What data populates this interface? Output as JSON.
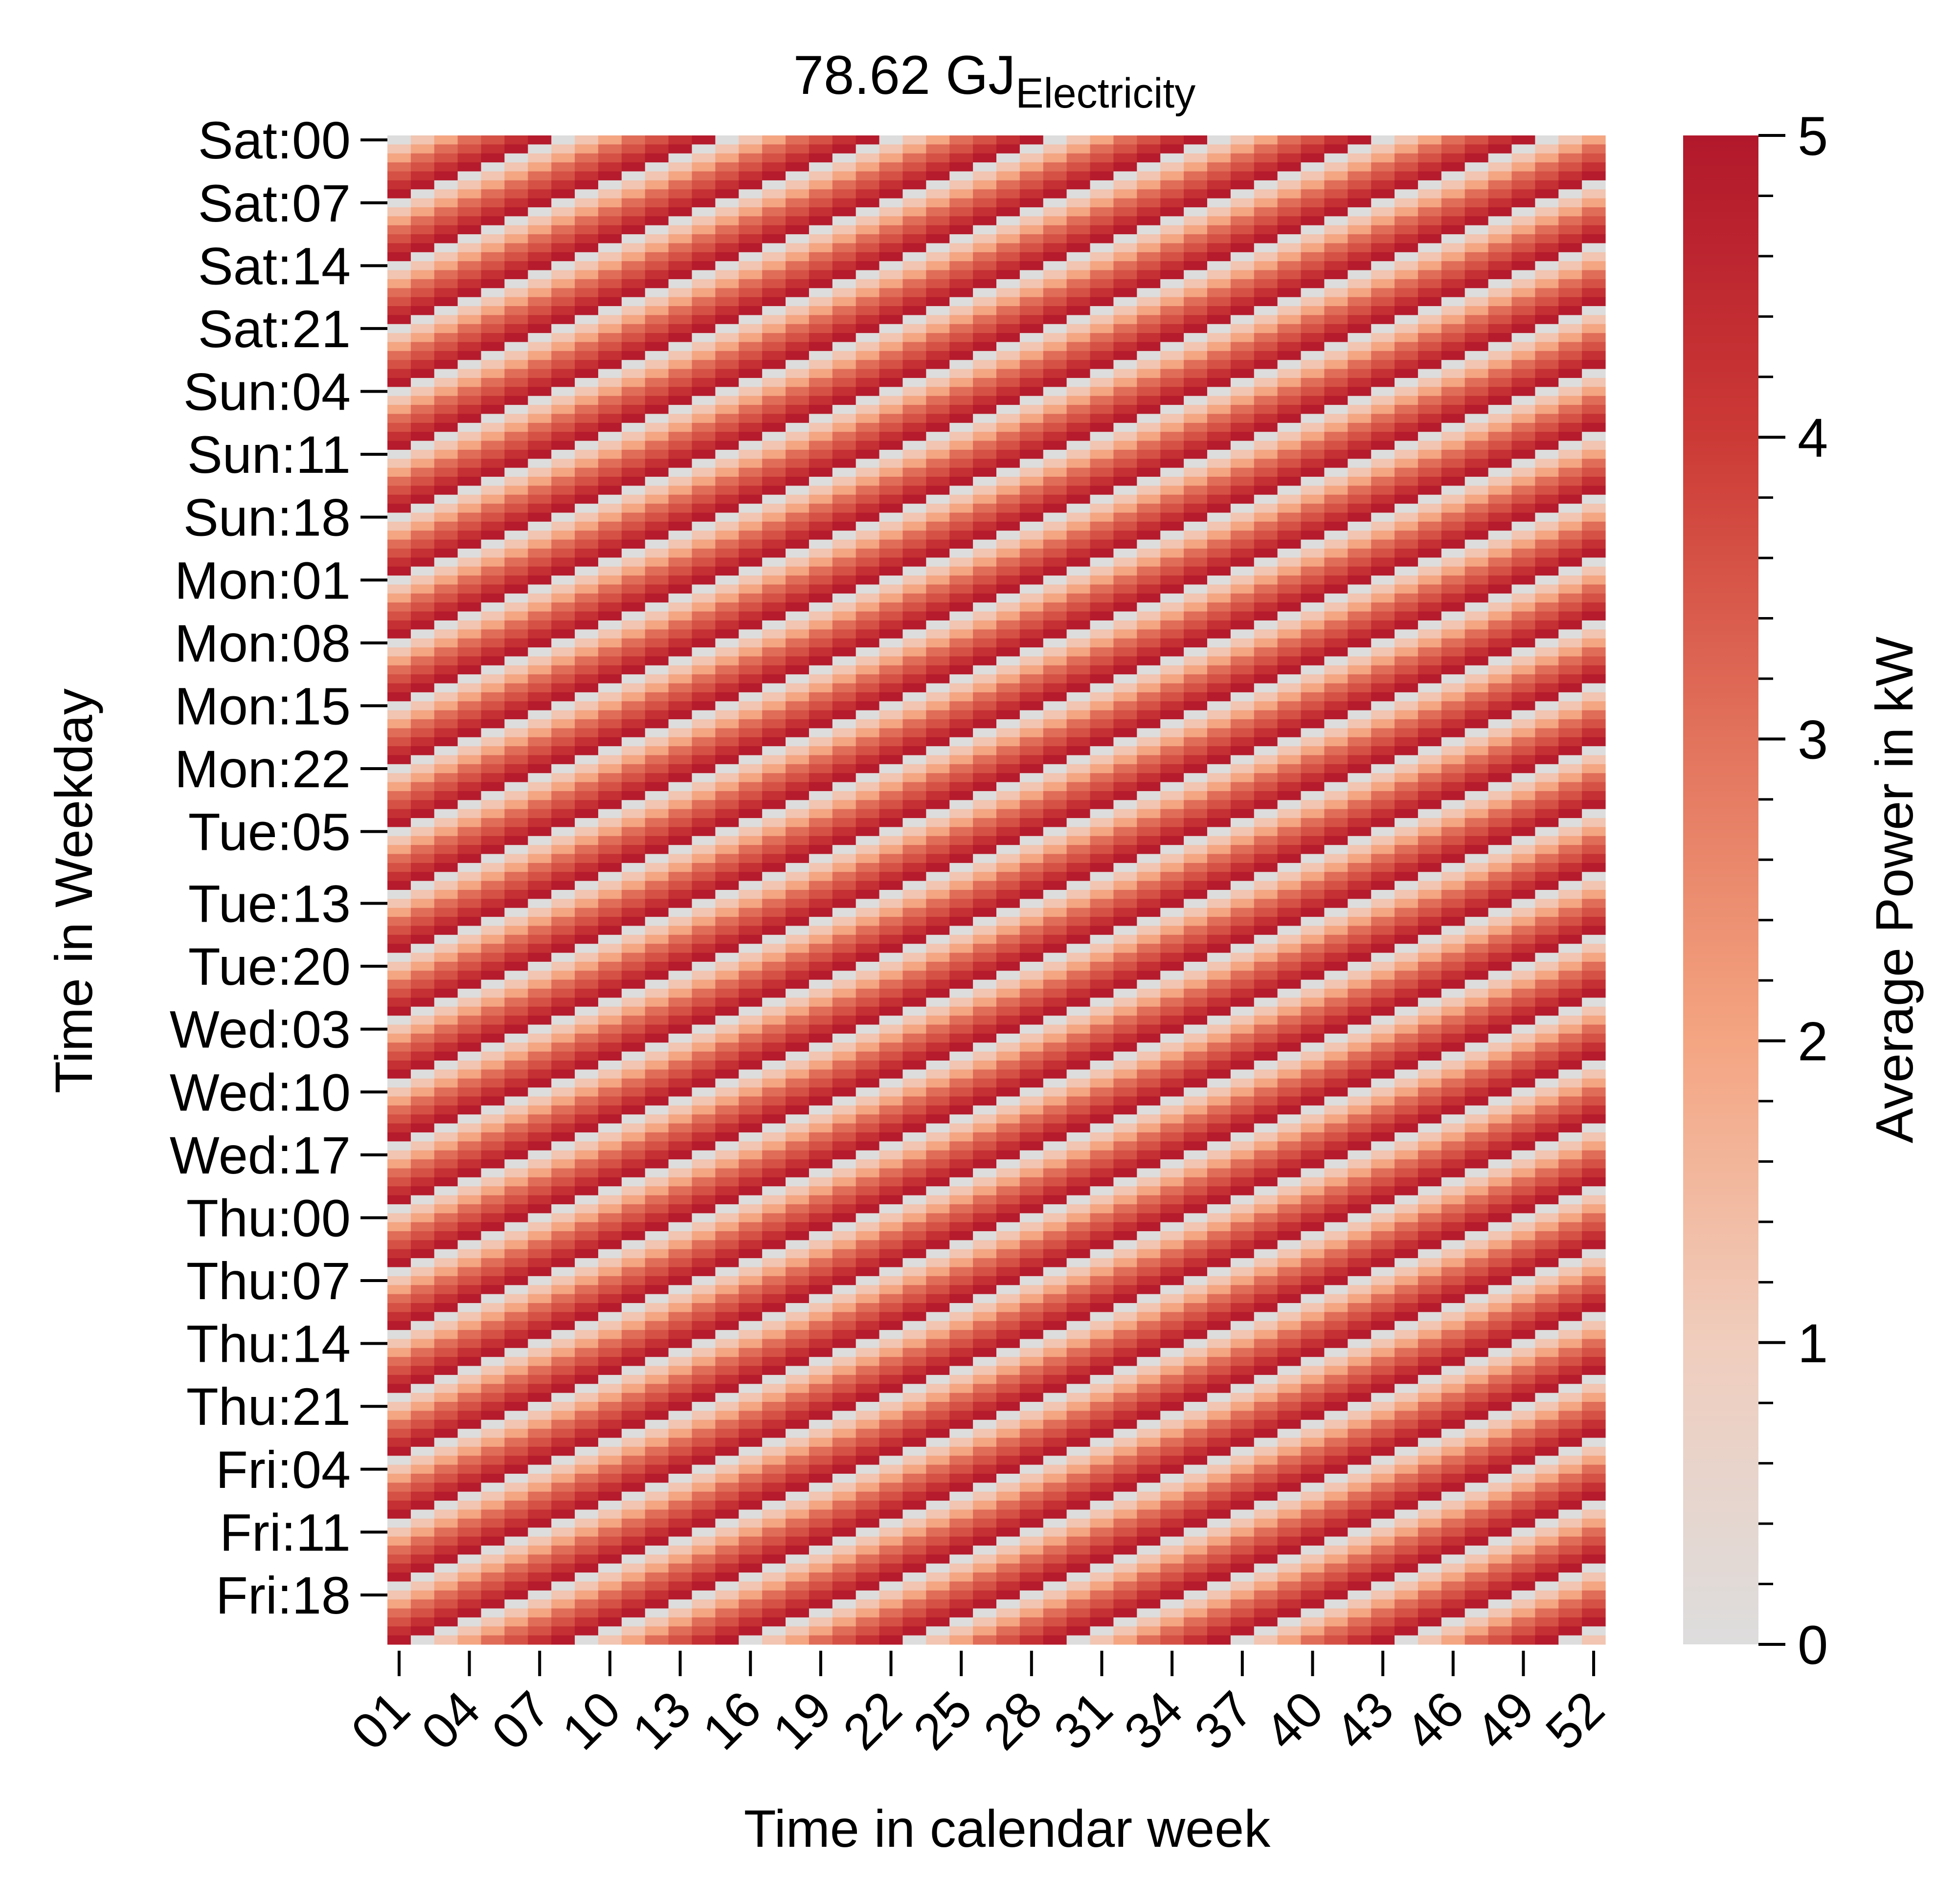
{
  "chart_data": {
    "type": "heatmap",
    "title": {
      "main": "78.62 GJ",
      "subscript": "Electricity"
    },
    "xlabel": "Time in calendar week",
    "ylabel": "Time in Weekday",
    "colorbar_label": "Average Power in kW",
    "x_tick_labels": [
      "01",
      "04",
      "07",
      "10",
      "13",
      "16",
      "19",
      "22",
      "25",
      "28",
      "31",
      "34",
      "37",
      "40",
      "43",
      "46",
      "49",
      "52"
    ],
    "y_tick_labels": [
      "Sat:00",
      "Sat:07",
      "Sat:14",
      "Sat:21",
      "Sun:04",
      "Sun:11",
      "Sun:18",
      "Mon:01",
      "Mon:08",
      "Mon:15",
      "Mon:22",
      "Tue:05",
      "Tue:13",
      "Tue:20",
      "Wed:03",
      "Wed:10",
      "Wed:17",
      "Thu:00",
      "Thu:07",
      "Thu:14",
      "Thu:21",
      "Fri:04",
      "Fri:11",
      "Fri:18"
    ],
    "colorbar_ticks": [
      "0",
      "1",
      "2",
      "3",
      "4",
      "5"
    ],
    "value_range": [
      0,
      5
    ],
    "colormap": [
      "#dddddd",
      "#f0cdbd",
      "#f4a582",
      "#e2735c",
      "#cc3a36",
      "#b2182b"
    ],
    "weeks": 52,
    "hours_per_week": 168,
    "pattern": {
      "description_values_kW": "repeating 7-hour profile, offset by one hour per week",
      "cycle_values": [
        0.0,
        1.2,
        2.0,
        3.1,
        3.6,
        4.3,
        4.9
      ]
    }
  }
}
